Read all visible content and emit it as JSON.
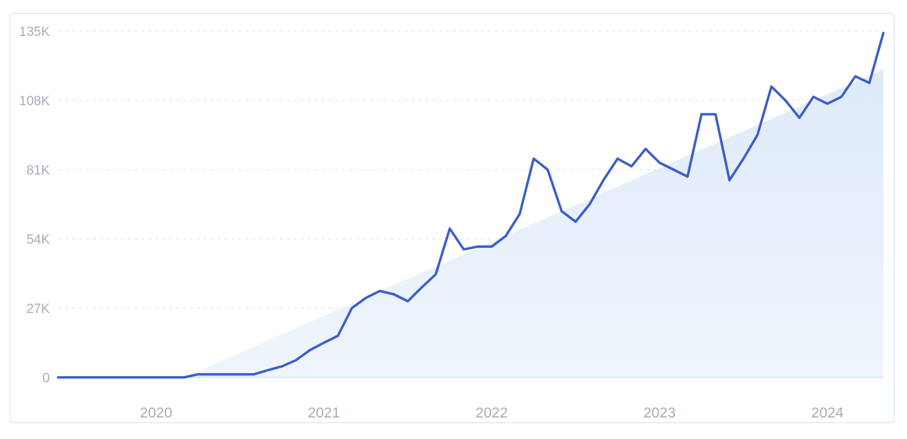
{
  "chart_data": {
    "type": "line",
    "title": "",
    "xlabel": "",
    "ylabel": "",
    "y_tick_labels": [
      "0",
      "27K",
      "54K",
      "81K",
      "108K",
      "135K"
    ],
    "y_tick_values": [
      0,
      27000,
      54000,
      81000,
      108000,
      135000
    ],
    "x_tick_labels": [
      "2020",
      "2021",
      "2022",
      "2023",
      "2024"
    ],
    "ylim": [
      0,
      135000
    ],
    "grid": true,
    "legend": "none",
    "colors": {
      "line": "#3a5ec8",
      "trend_fill": "#e6effb",
      "grid": "#dcdfe4",
      "axis": "#cfe0f3",
      "tick_text": "#a6adb8"
    },
    "series": [
      {
        "values": [
          {
            "x": "2019-09",
            "y": 0
          },
          {
            "x": "2019-10",
            "y": 0
          },
          {
            "x": "2019-11",
            "y": 0
          },
          {
            "x": "2019-12",
            "y": 0
          },
          {
            "x": "2020-01",
            "y": 0
          },
          {
            "x": "2020-02",
            "y": 0
          },
          {
            "x": "2020-03",
            "y": 0
          },
          {
            "x": "2020-04",
            "y": 0
          },
          {
            "x": "2020-05",
            "y": 0
          },
          {
            "x": "2020-06",
            "y": 0
          },
          {
            "x": "2020-07",
            "y": 1200
          },
          {
            "x": "2020-08",
            "y": 1200
          },
          {
            "x": "2020-09",
            "y": 1200
          },
          {
            "x": "2020-10",
            "y": 1200
          },
          {
            "x": "2020-11",
            "y": 1200
          },
          {
            "x": "2020-12",
            "y": 2800
          },
          {
            "x": "2021-01",
            "y": 4300
          },
          {
            "x": "2021-02",
            "y": 6700
          },
          {
            "x": "2021-03",
            "y": 10600
          },
          {
            "x": "2021-04",
            "y": 13500
          },
          {
            "x": "2021-05",
            "y": 16200
          },
          {
            "x": "2021-06",
            "y": 27000
          },
          {
            "x": "2021-07",
            "y": 31000
          },
          {
            "x": "2021-08",
            "y": 33700
          },
          {
            "x": "2021-09",
            "y": 32400
          },
          {
            "x": "2021-10",
            "y": 29700
          },
          {
            "x": "2021-11",
            "y": 35100
          },
          {
            "x": "2021-12",
            "y": 40200
          },
          {
            "x": "2022-01",
            "y": 58000
          },
          {
            "x": "2022-02",
            "y": 49900
          },
          {
            "x": "2022-03",
            "y": 51000
          },
          {
            "x": "2022-04",
            "y": 51000
          },
          {
            "x": "2022-05",
            "y": 55100
          },
          {
            "x": "2022-06",
            "y": 63700
          },
          {
            "x": "2022-07",
            "y": 85300
          },
          {
            "x": "2022-08",
            "y": 81000
          },
          {
            "x": "2022-09",
            "y": 64800
          },
          {
            "x": "2022-10",
            "y": 60700
          },
          {
            "x": "2022-11",
            "y": 67500
          },
          {
            "x": "2022-12",
            "y": 77000
          },
          {
            "x": "2023-01",
            "y": 85300
          },
          {
            "x": "2023-02",
            "y": 82300
          },
          {
            "x": "2023-03",
            "y": 89100
          },
          {
            "x": "2023-04",
            "y": 83700
          },
          {
            "x": "2023-05",
            "y": 81000
          },
          {
            "x": "2023-06",
            "y": 78300
          },
          {
            "x": "2023-07",
            "y": 102600
          },
          {
            "x": "2023-08",
            "y": 102600
          },
          {
            "x": "2023-09",
            "y": 76900
          },
          {
            "x": "2023-10",
            "y": 85300
          },
          {
            "x": "2023-11",
            "y": 94500
          },
          {
            "x": "2023-12",
            "y": 113400
          },
          {
            "x": "2024-01",
            "y": 108000
          },
          {
            "x": "2024-02",
            "y": 101200
          },
          {
            "x": "2024-03",
            "y": 109400
          },
          {
            "x": "2024-04",
            "y": 106700
          },
          {
            "x": "2024-05",
            "y": 109400
          },
          {
            "x": "2024-06",
            "y": 117400
          },
          {
            "x": "2024-07",
            "y": 114800
          },
          {
            "x": "2024-08",
            "y": 134300
          }
        ]
      }
    ],
    "trend_area": [
      {
        "x": "2020-06",
        "y": 0
      },
      {
        "x": "2024-08",
        "y": 120000
      }
    ]
  }
}
